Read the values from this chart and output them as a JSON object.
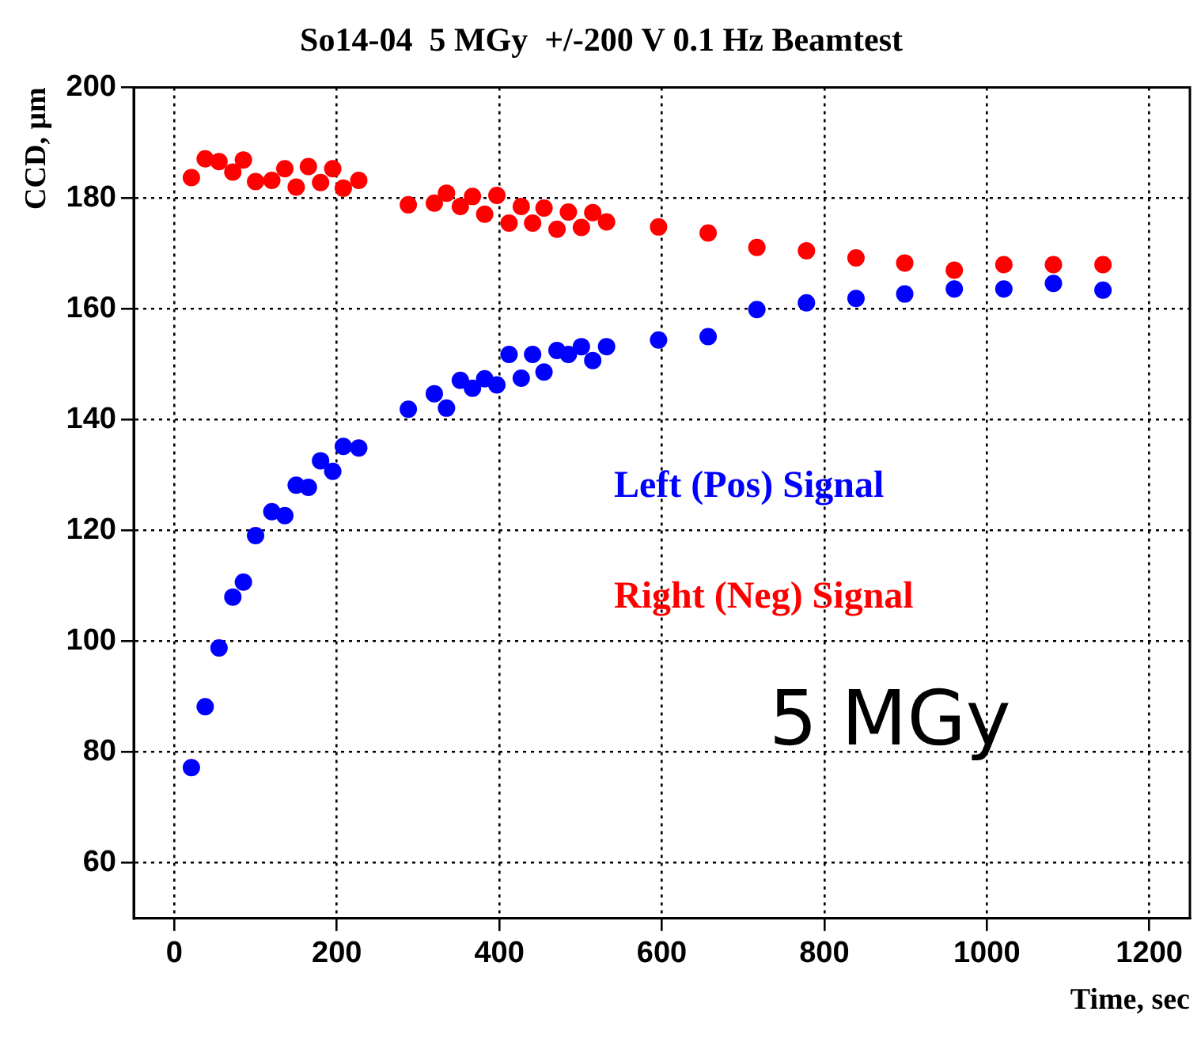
{
  "chart_data": {
    "type": "scatter",
    "title": "So14-04  5 MGy  +/-200 V 0.1 Hz Beamtest",
    "xlabel": "Time, sec",
    "ylabel": "CCD, μm",
    "x": [
      21,
      38,
      55,
      72,
      85,
      100,
      120,
      136,
      150,
      165,
      180,
      195,
      208,
      227,
      288,
      320,
      335,
      352,
      367,
      382,
      397,
      412,
      427,
      441,
      455,
      471,
      485,
      501,
      515,
      532,
      596,
      657,
      717,
      778,
      839,
      899,
      960,
      1021,
      1082,
      1143
    ],
    "series": [
      {
        "name": "Left (Pos) Signal",
        "color": "#0000ff",
        "values": [
          77.2,
          88.2,
          98.8,
          108,
          110.7,
          119.1,
          123.4,
          122.7,
          128.2,
          127.8,
          132.6,
          130.7,
          135.2,
          134.9,
          141.9,
          144.7,
          142.1,
          147.1,
          145.7,
          147.4,
          146.3,
          151.8,
          147.5,
          151.8,
          148.6,
          152.5,
          151.8,
          153.2,
          150.7,
          153.2,
          154.4,
          155,
          159.9,
          161.1,
          161.9,
          162.7,
          163.6,
          163.6,
          164.6,
          163.4
        ]
      },
      {
        "name": "Right (Neg) Signal",
        "color": "#ff0000",
        "values": [
          183.7,
          187.1,
          186.6,
          184.7,
          186.9,
          183,
          183.2,
          185.3,
          182,
          185.7,
          182.8,
          185.3,
          181.8,
          183.2,
          178.8,
          179.1,
          180.9,
          178.5,
          180.3,
          177.1,
          180.5,
          175.5,
          178.5,
          175.5,
          178.2,
          174.4,
          177.5,
          174.7,
          177.4,
          175.7,
          174.8,
          173.7,
          171.1,
          170.5,
          169.2,
          168.3,
          167,
          168,
          168,
          168
        ]
      }
    ],
    "annotations": [
      "5 MGy"
    ],
    "xlim": [
      -50,
      1250
    ],
    "xticks": [
      0,
      200,
      400,
      600,
      800,
      1000,
      1200
    ],
    "ylim": [
      50,
      200
    ],
    "yticks": [
      60,
      80,
      100,
      120,
      140,
      160,
      180,
      200
    ],
    "grid": true,
    "legend": false,
    "marker": "circle"
  }
}
